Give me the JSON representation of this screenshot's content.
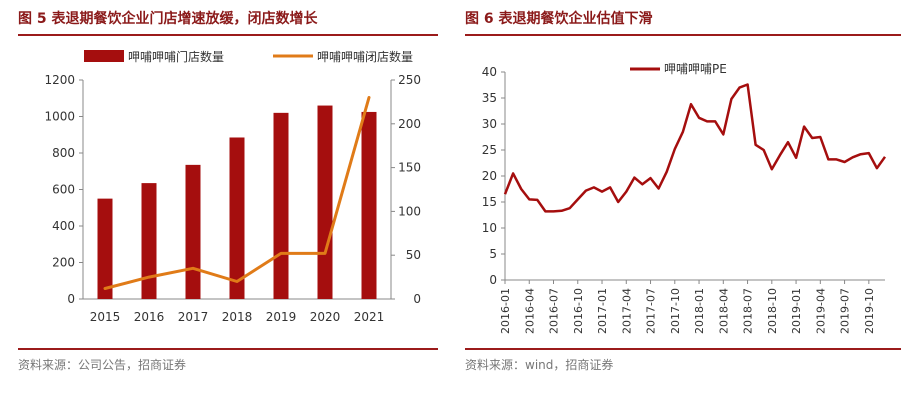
{
  "left": {
    "title": "图 5 表退期餐饮企业门店增速放缓，闭店数增长",
    "source": "资料来源：公司公告，招商证券"
  },
  "right": {
    "title": "图 6 表退期餐饮企业估值下滑",
    "source": "资料来源：wind，招商证券"
  },
  "colors": {
    "bar": "#a50e0e",
    "line_orange": "#e07b18",
    "line_red": "#a50e0e",
    "rule": "#9b1b1b"
  },
  "chart_data": [
    {
      "type": "bar",
      "title": "",
      "categories": [
        "2015",
        "2016",
        "2017",
        "2018",
        "2019",
        "2020",
        "2021"
      ],
      "series": [
        {
          "name": "呷哺呷哺门店数量",
          "type": "bar",
          "axis": "left",
          "values": [
            550,
            635,
            735,
            885,
            1020,
            1060,
            1025
          ]
        },
        {
          "name": "呷哺呷哺闭店数量",
          "type": "line",
          "axis": "right",
          "values": [
            12,
            25,
            35,
            20,
            52,
            52,
            230
          ]
        }
      ],
      "ylim_left": [
        0,
        1200
      ],
      "yticks_left": [
        0,
        200,
        400,
        600,
        800,
        1000,
        1200
      ],
      "ylim_right": [
        0,
        250
      ],
      "yticks_right": [
        0,
        50,
        100,
        150,
        200,
        250
      ],
      "legend": "top",
      "grid": false
    },
    {
      "type": "line",
      "title": "",
      "series": [
        {
          "name": "呷哺呷哺PE",
          "values": [
            16.5,
            20.5,
            17.5,
            15.5,
            15.4,
            13.2,
            13.2,
            13.3,
            13.8,
            15.5,
            17.2,
            17.8,
            17.0,
            17.8,
            15.0,
            17.0,
            19.7,
            18.4,
            19.6,
            17.6,
            20.8,
            25.2,
            28.5,
            33.8,
            31.2,
            30.5,
            30.5,
            28.0,
            34.8,
            37.0,
            37.6,
            26.0,
            25.0,
            21.3,
            24.0,
            26.5,
            23.5,
            29.5,
            27.3,
            27.5,
            23.2,
            23.2,
            22.7,
            23.6,
            24.2,
            24.4,
            21.5,
            23.7
          ]
        }
      ],
      "x_tick_labels": [
        "2016-01",
        "2016-04",
        "2016-07",
        "2016-10",
        "2017-01",
        "2017-04",
        "2017-07",
        "2017-10",
        "2018-01",
        "2018-04",
        "2018-07",
        "2018-10",
        "2019-01",
        "2019-04",
        "2019-07",
        "2019-10"
      ],
      "x_start": "2016-01",
      "x_end": "2019-12",
      "ylim": [
        0,
        40
      ],
      "yticks": [
        0,
        5,
        10,
        15,
        20,
        25,
        30,
        35,
        40
      ],
      "legend": "top-left",
      "grid": false
    }
  ]
}
